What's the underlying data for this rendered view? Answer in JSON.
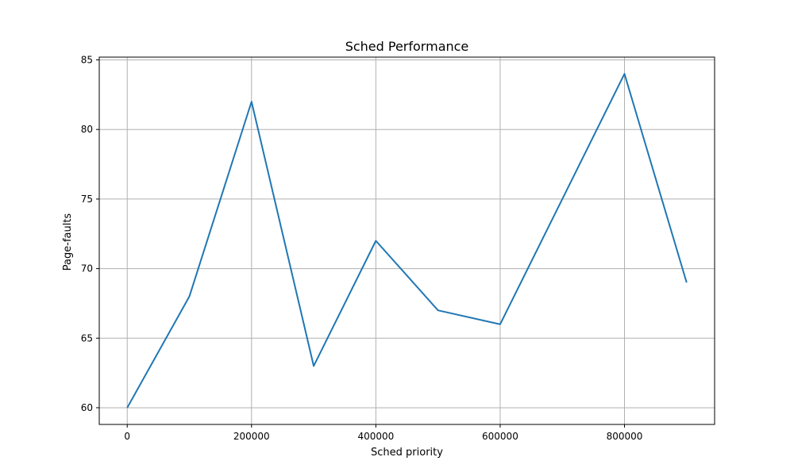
{
  "chart_data": {
    "type": "line",
    "title": "Sched Performance",
    "xlabel": "Sched priority",
    "ylabel": "Page-faults",
    "x": [
      0,
      100000,
      200000,
      300000,
      400000,
      500000,
      600000,
      700000,
      800000,
      900000
    ],
    "series": [
      {
        "values": [
          60,
          68,
          82,
          63,
          72,
          67,
          66,
          75,
          84,
          69
        ],
        "color": "#1f77b4"
      }
    ],
    "xlim": [
      -45000,
      945000
    ],
    "ylim": [
      58.8,
      85.2
    ],
    "xticks": [
      0,
      200000,
      400000,
      600000,
      800000
    ],
    "xtick_labels": [
      "0",
      "200000",
      "400000",
      "600000",
      "800000"
    ],
    "yticks": [
      60,
      65,
      70,
      75,
      80,
      85
    ],
    "ytick_labels": [
      "60",
      "65",
      "70",
      "75",
      "80",
      "85"
    ],
    "grid": true,
    "grid_color": "#b0b0b0"
  }
}
